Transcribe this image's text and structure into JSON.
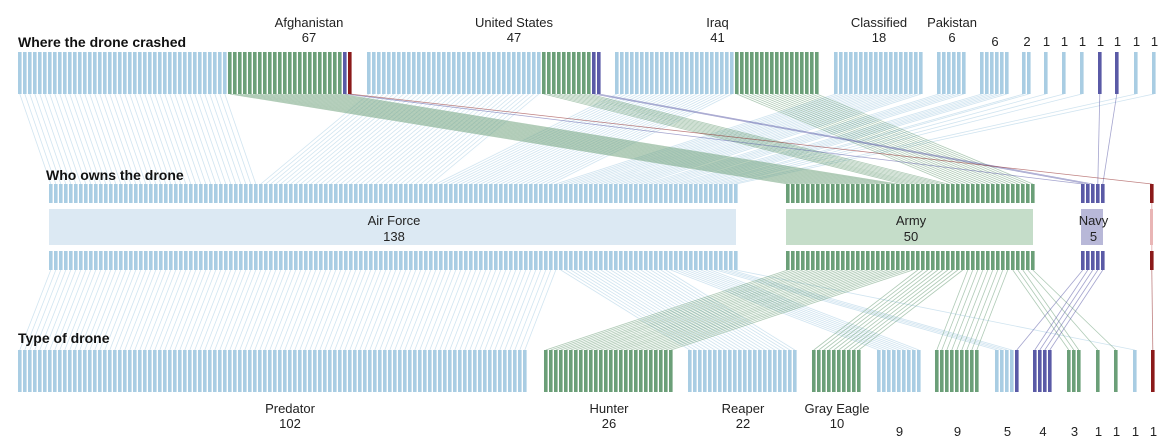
{
  "colors": {
    "air_force": "#a9cde3",
    "army": "#6b9f78",
    "navy": "#5a5aa6",
    "other": "#8b1a1a",
    "air_force_box": "#dce9f3",
    "army_box": "#c5ddc9",
    "navy_box": "#b8b8d8",
    "other_box": "#e9b5b5"
  },
  "sections": {
    "crashed": "Where the drone crashed",
    "owner": "Who owns the drone",
    "type": "Type of drone"
  },
  "crashed": [
    {
      "name": "Afghanistan",
      "count": "67",
      "mix": {
        "air_force": 42,
        "army": 23,
        "navy": 1,
        "other": 1
      }
    },
    {
      "name": "United States",
      "count": "47",
      "mix": {
        "air_force": 35,
        "army": 10,
        "navy": 2
      }
    },
    {
      "name": "Iraq",
      "count": "41",
      "mix": {
        "air_force": 24,
        "army": 17
      }
    },
    {
      "name": "Classified",
      "count": "18",
      "mix": {
        "air_force": 18
      }
    },
    {
      "name": "Pakistan",
      "count": "6",
      "mix": {
        "air_force": 6
      }
    },
    {
      "name": "",
      "count": "6",
      "mix": {
        "air_force": 6
      }
    },
    {
      "name": "",
      "count": "2",
      "mix": {
        "air_force": 2
      }
    },
    {
      "name": "",
      "count": "1",
      "mix": {
        "air_force": 1
      }
    },
    {
      "name": "",
      "count": "1",
      "mix": {
        "air_force": 1
      }
    },
    {
      "name": "",
      "count": "1",
      "mix": {
        "air_force": 1
      }
    },
    {
      "name": "",
      "count": "1",
      "mix": {
        "navy": 1
      }
    },
    {
      "name": "",
      "count": "1",
      "mix": {
        "navy": 1
      }
    },
    {
      "name": "",
      "count": "1",
      "mix": {
        "air_force": 1
      }
    },
    {
      "name": "",
      "count": "1",
      "mix": {
        "air_force": 1
      }
    }
  ],
  "owners": [
    {
      "name": "Air Force",
      "count": "138",
      "key": "air_force"
    },
    {
      "name": "Army",
      "count": "50",
      "key": "army"
    },
    {
      "name": "Navy",
      "count": "5",
      "key": "navy"
    },
    {
      "name": "",
      "count": "",
      "key": "other",
      "n": 1
    }
  ],
  "types": [
    {
      "name": "Predator",
      "count": "102",
      "mix": {
        "air_force": 102
      }
    },
    {
      "name": "Hunter",
      "count": "26",
      "mix": {
        "army": 26
      }
    },
    {
      "name": "Reaper",
      "count": "22",
      "mix": {
        "air_force": 22
      }
    },
    {
      "name": "Gray Eagle",
      "count": "10",
      "mix": {
        "army": 10
      }
    },
    {
      "name": "",
      "count": "9",
      "mix": {
        "air_force": 9
      }
    },
    {
      "name": "",
      "count": "9",
      "mix": {
        "army": 9
      }
    },
    {
      "name": "",
      "count": "5",
      "mix": {
        "air_force": 4,
        "navy": 1
      }
    },
    {
      "name": "",
      "count": "4",
      "mix": {
        "navy": 4
      }
    },
    {
      "name": "",
      "count": "3",
      "mix": {
        "army": 3
      }
    },
    {
      "name": "",
      "count": "1",
      "mix": {
        "army": 1
      }
    },
    {
      "name": "",
      "count": "1",
      "mix": {
        "army": 1
      }
    },
    {
      "name": "",
      "count": "1",
      "mix": {
        "air_force": 1
      }
    },
    {
      "name": "",
      "count": "1",
      "mix": {
        "other": 1
      }
    }
  ]
}
